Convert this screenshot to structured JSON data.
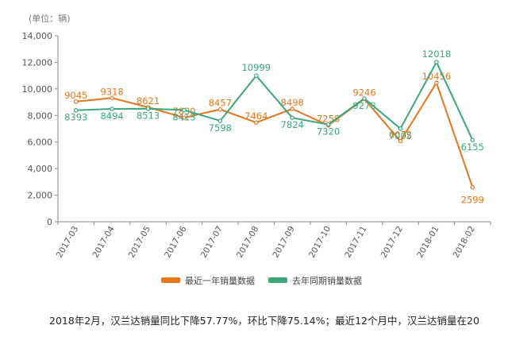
{
  "chart_data": {
    "type": "line",
    "unit_label": "(单位：辆)",
    "categories": [
      "2017-03",
      "2017-04",
      "2017-05",
      "2017-06",
      "2017-07",
      "2017-08",
      "2017-09",
      "2017-10",
      "2017-11",
      "2017-12",
      "2018-01",
      "2018-02"
    ],
    "y_ticks": [
      "0",
      "2,000",
      "4,000",
      "6,000",
      "8,000",
      "10,000",
      "12,000",
      "14,000"
    ],
    "ylim": [
      0,
      14000
    ],
    "grid": false,
    "legend_position": "bottom",
    "series": [
      {
        "name": "最近一年销量数据",
        "color": "#e8751a",
        "values": [
          9045,
          9318,
          8621,
          7830,
          8457,
          7464,
          8498,
          7258,
          9246,
          6072,
          10456,
          2599
        ]
      },
      {
        "name": "去年同期销量数据",
        "color": "#3aa87a",
        "values": [
          8393,
          8494,
          8513,
          8413,
          7598,
          10999,
          7824,
          7320,
          9278,
          7005,
          12018,
          6155
        ]
      }
    ]
  },
  "caption": "2018年2月，汉兰达销量同比下降57.77%，环比下降75.14%；最近12个月中，汉兰达销量在20"
}
